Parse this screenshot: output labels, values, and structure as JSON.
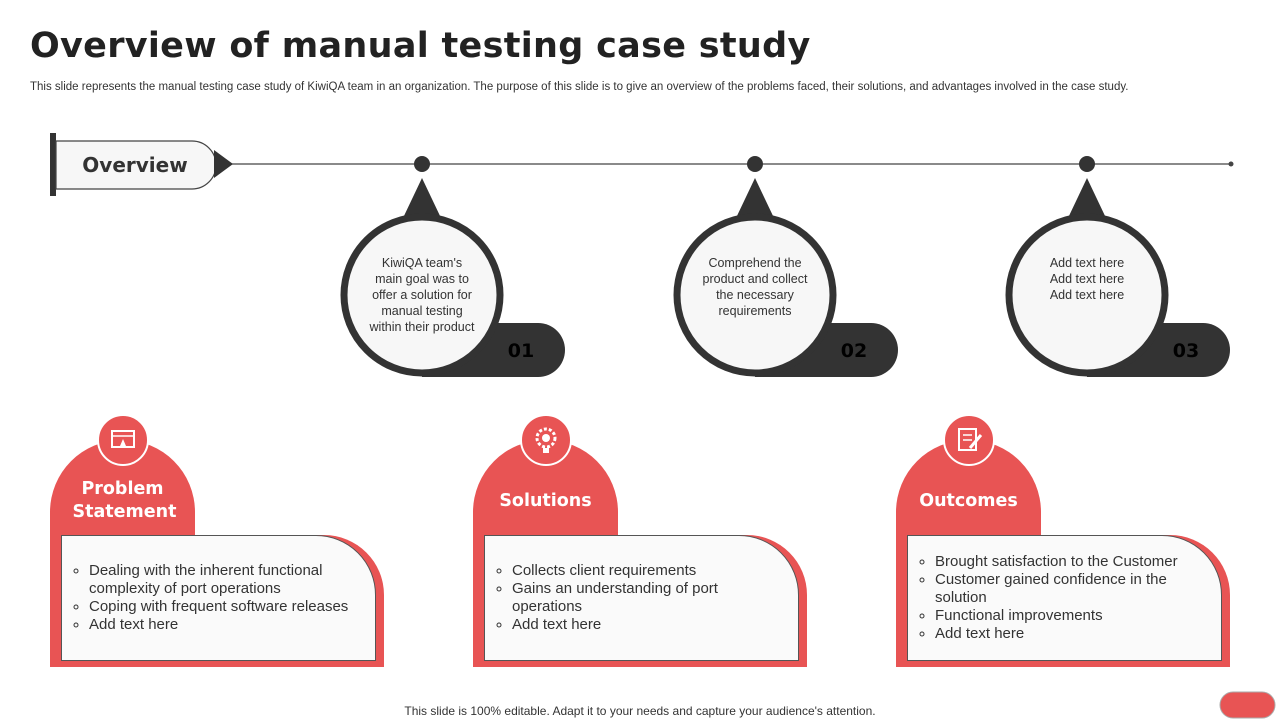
{
  "header": {
    "title": "Overview of manual testing case study",
    "subtitle": "This slide represents the manual testing case study of KiwiQA team in an organization. The purpose of this slide is to give an overview of the problems faced, their solutions, and advantages involved in the case study."
  },
  "timeline": {
    "label": "Overview",
    "steps": [
      {
        "number": "01",
        "text": "KiwiQA team's main goal was to offer a solution for manual testing within their product"
      },
      {
        "number": "02",
        "text": "Comprehend the product and collect the necessary requirements"
      },
      {
        "number": "03",
        "text": "Add text here Add text here Add text here"
      }
    ]
  },
  "cards": [
    {
      "title": "Problem Statement",
      "items": [
        "Dealing with the inherent functional complexity of port operations",
        "Coping with frequent software releases",
        "Add text here"
      ]
    },
    {
      "title": "Solutions",
      "items": [
        "Collects client requirements",
        "Gains an understanding of port operations",
        "Add text here"
      ]
    },
    {
      "title": "Outcomes",
      "items": [
        "Brought satisfaction to the Customer",
        "Customer gained confidence in the solution",
        "Functional improvements",
        "Add text here"
      ]
    }
  ],
  "footer": "This slide is 100% editable. Adapt it to your needs and capture your audience's attention."
}
